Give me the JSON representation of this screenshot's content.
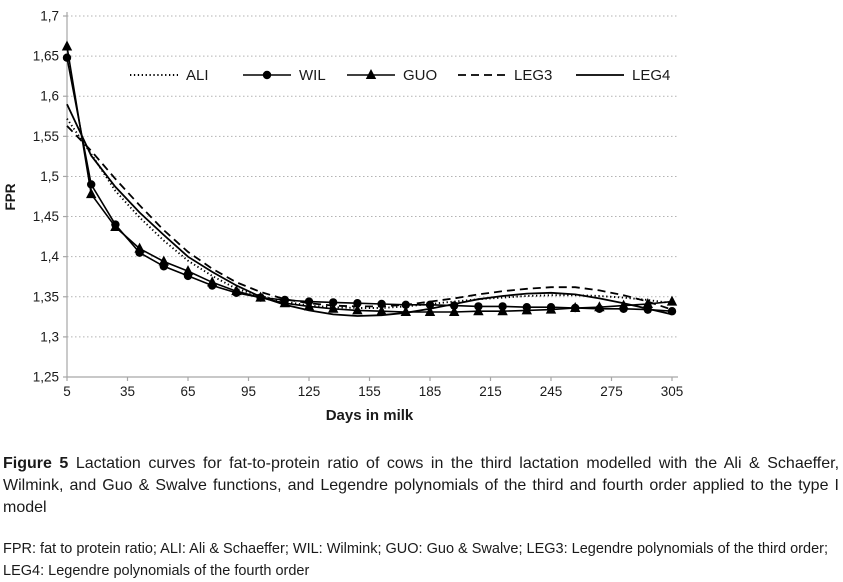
{
  "figure": {
    "caption_label": "Figure 5",
    "caption_text": "Lactation curves for fat-to-protein ratio of cows in the third lactation modelled with the Ali & Schaeffer, Wilmink, and Guo & Swalve functions, and Legendre polynomials of the third and fourth order applied to the type I model",
    "footnote": "FPR: fat to protein ratio; ALI: Ali & Schaeffer; WIL: Wilmink; GUO: Guo & Swalve; LEG3: Legendre polynomials of the third order; LEG4: Legendre polynomials of the fourth order"
  },
  "colors": {
    "series": "#000000",
    "grid": "#b3b3b3",
    "axis": "#a6a6a6",
    "text": "#1a1a1a"
  },
  "chart_data": {
    "type": "line",
    "title": "",
    "xlabel": "Days in milk",
    "ylabel": "FPR",
    "xlim": [
      5,
      305
    ],
    "ylim": [
      1.25,
      1.7
    ],
    "xticks": [
      5,
      35,
      65,
      95,
      125,
      155,
      185,
      215,
      245,
      275,
      305
    ],
    "yticks": [
      1.25,
      1.3,
      1.35,
      1.4,
      1.45,
      1.5,
      1.55,
      1.6,
      1.65,
      1.7
    ],
    "ytick_labels": [
      "1,25",
      "1,3",
      "1,35",
      "1,4",
      "1,45",
      "1,5",
      "1,55",
      "1,6",
      "1,65",
      "1,7"
    ],
    "grid": "horizontal-dotted",
    "legend_position": "top-inside",
    "x": [
      5,
      17,
      29,
      41,
      53,
      65,
      77,
      89,
      101,
      113,
      125,
      137,
      149,
      161,
      173,
      185,
      197,
      209,
      221,
      233,
      245,
      257,
      269,
      281,
      293,
      305
    ],
    "series": [
      {
        "name": "ALI",
        "line": "dotted",
        "marker": "none",
        "values": [
          1.572,
          1.528,
          1.482,
          1.449,
          1.42,
          1.395,
          1.376,
          1.36,
          1.351,
          1.344,
          1.339,
          1.337,
          1.336,
          1.336,
          1.338,
          1.341,
          1.344,
          1.347,
          1.349,
          1.351,
          1.352,
          1.352,
          1.351,
          1.349,
          1.346,
          1.342
        ]
      },
      {
        "name": "WIL",
        "line": "solid",
        "marker": "circle",
        "values": [
          1.648,
          1.49,
          1.44,
          1.405,
          1.388,
          1.376,
          1.364,
          1.355,
          1.349,
          1.346,
          1.344,
          1.343,
          1.342,
          1.341,
          1.34,
          1.34,
          1.339,
          1.338,
          1.338,
          1.337,
          1.337,
          1.336,
          1.335,
          1.335,
          1.334,
          1.332
        ]
      },
      {
        "name": "GUO",
        "line": "solid",
        "marker": "triangle",
        "values": [
          1.662,
          1.478,
          1.437,
          1.41,
          1.394,
          1.382,
          1.368,
          1.357,
          1.349,
          1.342,
          1.338,
          1.335,
          1.333,
          1.332,
          1.331,
          1.331,
          1.331,
          1.332,
          1.332,
          1.333,
          1.334,
          1.336,
          1.337,
          1.339,
          1.341,
          1.344
        ]
      },
      {
        "name": "LEG3",
        "line": "dashed",
        "marker": "none",
        "values": [
          1.563,
          1.532,
          1.497,
          1.464,
          1.433,
          1.406,
          1.385,
          1.368,
          1.356,
          1.347,
          1.342,
          1.339,
          1.338,
          1.338,
          1.34,
          1.344,
          1.348,
          1.353,
          1.357,
          1.36,
          1.362,
          1.362,
          1.358,
          1.352,
          1.344,
          1.334
        ]
      },
      {
        "name": "LEG4",
        "line": "solid",
        "marker": "none",
        "values": [
          1.59,
          1.526,
          1.487,
          1.455,
          1.427,
          1.4,
          1.381,
          1.364,
          1.35,
          1.34,
          1.333,
          1.328,
          1.326,
          1.327,
          1.33,
          1.335,
          1.341,
          1.347,
          1.351,
          1.354,
          1.355,
          1.353,
          1.348,
          1.342,
          1.335,
          1.328
        ]
      }
    ]
  }
}
